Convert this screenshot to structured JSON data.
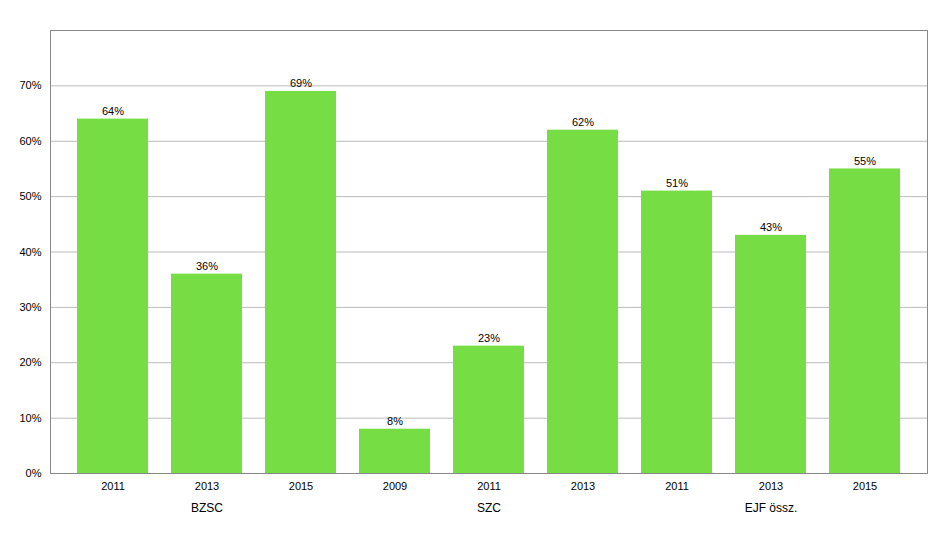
{
  "chart_data": {
    "type": "bar",
    "groups": [
      {
        "label": "BZSC",
        "categories": [
          "2011",
          "2013",
          "2015"
        ],
        "values": [
          0.64,
          0.36,
          0.69
        ],
        "value_labels": [
          "64%",
          "36%",
          "69%"
        ]
      },
      {
        "label": "SZC",
        "categories": [
          "2009",
          "2011",
          "2013"
        ],
        "values": [
          0.08,
          0.23,
          0.62
        ],
        "value_labels": [
          "8%",
          "23%",
          "62%"
        ]
      },
      {
        "label": "EJF össz.",
        "categories": [
          "2011",
          "2013",
          "2015"
        ],
        "values": [
          0.51,
          0.43,
          0.55
        ],
        "value_labels": [
          "51%",
          "43%",
          "55%"
        ]
      }
    ],
    "color": "#77DD44",
    "ylim": [
      0,
      0.8
    ],
    "yticks": [
      {
        "value": 0.0,
        "label": "0%"
      },
      {
        "value": 0.1,
        "label": "10%"
      },
      {
        "value": 0.2,
        "label": "20%"
      },
      {
        "value": 0.3,
        "label": "30%"
      },
      {
        "value": 0.4,
        "label": "40%"
      },
      {
        "value": 0.5,
        "label": "50%"
      },
      {
        "value": 0.6,
        "label": "60%"
      },
      {
        "value": 0.7,
        "label": "70%"
      }
    ],
    "grid": true,
    "data_labels": true
  }
}
